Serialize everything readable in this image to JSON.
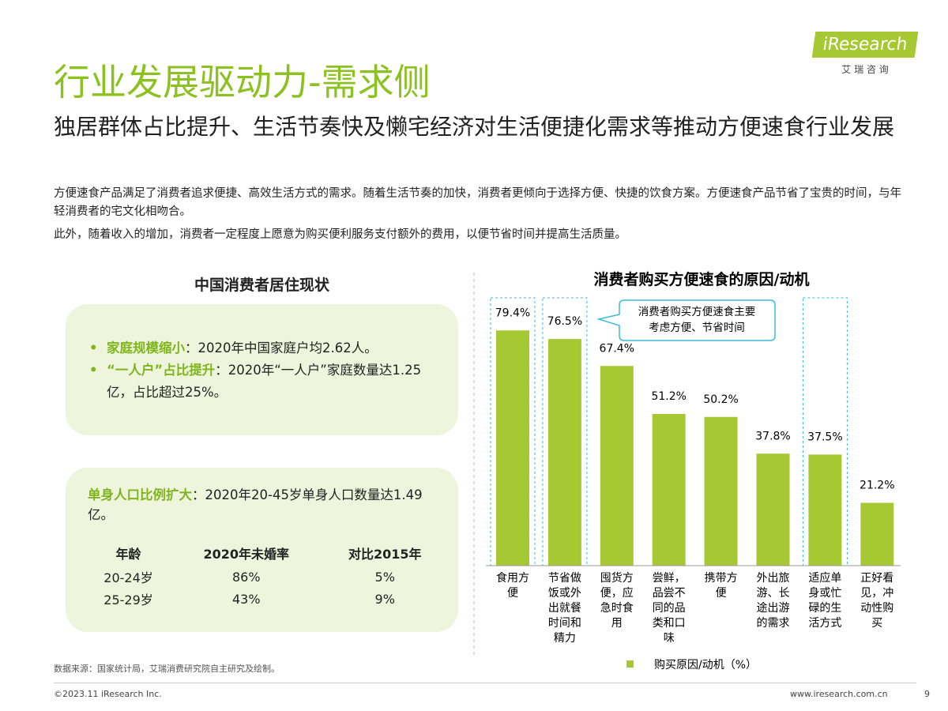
{
  "header": {
    "title": "行业发展驱动力-需求侧",
    "subtitle": "独居群体占比提升、生活节奏快及懒宅经济对生活便捷化需求等推动方便速食行业发展",
    "logo": "iResearch",
    "logo_sub": "艾 瑞 咨 询"
  },
  "intro": [
    "方便速食产品满足了消费者追求便捷、高效生活方式的需求。随着生活节奏的加快，消费者更倾向于选择方便、快捷的饮食方案。方便速食产品节省了宝贵的时间，与年轻消费者的宅文化相吻合。",
    "此外，随着收入的增加，消费者一定程度上愿意为购买便利服务支付额外的费用，以便节省时间并提高生活质量。"
  ],
  "left": {
    "title": "中国消费者居住现状",
    "box1": [
      {
        "label": "家庭规模缩小",
        "text": "：2020年中国家庭户均2.62人。"
      },
      {
        "label": "“一人户”占比提升",
        "text": "：2020年“一人户”家庭数量达1.25亿，占比超过25%。"
      }
    ],
    "box2": {
      "label": "单身人口比例扩大",
      "text": "：2020年20-45岁单身人口数量达1.49亿。"
    },
    "table": {
      "headers": [
        "年龄",
        "2020年未婚率",
        "对比2015年"
      ],
      "rows": [
        [
          "20-24岁",
          "86%",
          "5%"
        ],
        [
          "25-29岁",
          "43%",
          "9%"
        ]
      ]
    }
  },
  "chart_data": {
    "type": "bar",
    "title": "消费者购买方便速食的原因/动机",
    "categories": [
      "食用方便",
      "节省做饭或外出就餐时间和精力",
      "囤货方便，应急时食用",
      "尝鲜，品尝不同的品类和口味",
      "携带方便",
      "外出旅游、长途出游的需求",
      "适应单身或忙碌的生活方式",
      "正好看见，冲动性购买"
    ],
    "series": [
      {
        "name": "购买原因/动机（%）",
        "color": "#a6c933",
        "values": [
          79.4,
          76.5,
          67.4,
          51.2,
          50.2,
          37.8,
          37.5,
          21.2
        ],
        "value_labels": [
          "79.4%",
          "76.5%",
          "67.4%",
          "51.2%",
          "50.2%",
          "37.8%",
          "37.5%",
          "21.2%"
        ]
      }
    ],
    "annotation": "消费者购买方便速食主要考虑方便、节省时间"
  },
  "footer": {
    "source": "数据来源：国家统计局，艾瑞消费研究院自主研究及绘制。",
    "copyright": "©2023.11 iResearch Inc.",
    "url": "www.iresearch.com.cn",
    "page": "9"
  }
}
